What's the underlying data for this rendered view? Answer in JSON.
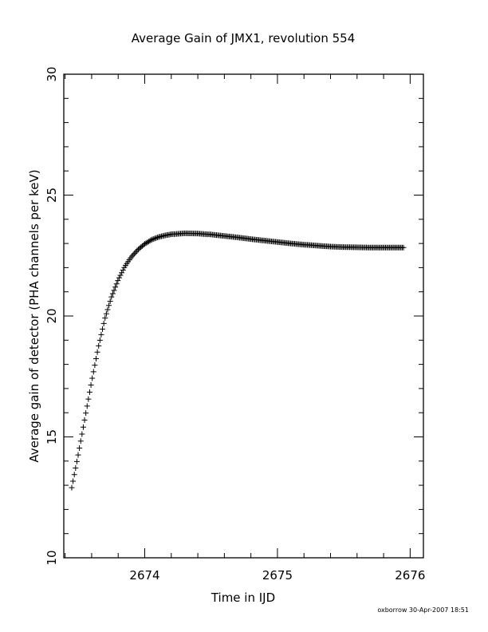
{
  "chart_data": {
    "type": "scatter",
    "title": "Average Gain of JMX1, revolution 554",
    "xlabel": "Time in IJD",
    "ylabel": "Average gain of detector (PHA channels per keV)",
    "xlim": [
      2673.39,
      2676.1
    ],
    "ylim": [
      10,
      30
    ],
    "xticks_major": [
      2674,
      2675,
      2676
    ],
    "yticks_major": [
      10,
      15,
      20,
      25,
      30
    ],
    "xtick_minor_step": 0.2,
    "ytick_minor_step": 1,
    "marker": "plus",
    "grid": false,
    "series": [
      {
        "x_range": [
          2673.45,
          2675.95
        ],
        "n_points": 260,
        "anchors": [
          [
            2673.45,
            12.9
          ],
          [
            2673.5,
            14.3
          ],
          [
            2673.55,
            15.8
          ],
          [
            2673.6,
            17.3
          ],
          [
            2673.65,
            18.7
          ],
          [
            2673.7,
            19.9
          ],
          [
            2673.75,
            20.8
          ],
          [
            2673.8,
            21.5
          ],
          [
            2673.85,
            22.05
          ],
          [
            2673.9,
            22.45
          ],
          [
            2673.95,
            22.75
          ],
          [
            2674.0,
            22.98
          ],
          [
            2674.05,
            23.15
          ],
          [
            2674.1,
            23.26
          ],
          [
            2674.15,
            23.33
          ],
          [
            2674.2,
            23.38
          ],
          [
            2674.3,
            23.42
          ],
          [
            2674.4,
            23.41
          ],
          [
            2674.5,
            23.37
          ],
          [
            2674.6,
            23.31
          ],
          [
            2674.7,
            23.25
          ],
          [
            2674.8,
            23.18
          ],
          [
            2674.9,
            23.12
          ],
          [
            2675.0,
            23.06
          ],
          [
            2675.1,
            23.0
          ],
          [
            2675.2,
            22.95
          ],
          [
            2675.3,
            22.91
          ],
          [
            2675.4,
            22.87
          ],
          [
            2675.5,
            22.85
          ],
          [
            2675.6,
            22.84
          ],
          [
            2675.7,
            22.83
          ],
          [
            2675.8,
            22.83
          ],
          [
            2675.95,
            22.83
          ]
        ]
      }
    ]
  },
  "footer": "oxborrow 30-Apr-2007 18:51"
}
